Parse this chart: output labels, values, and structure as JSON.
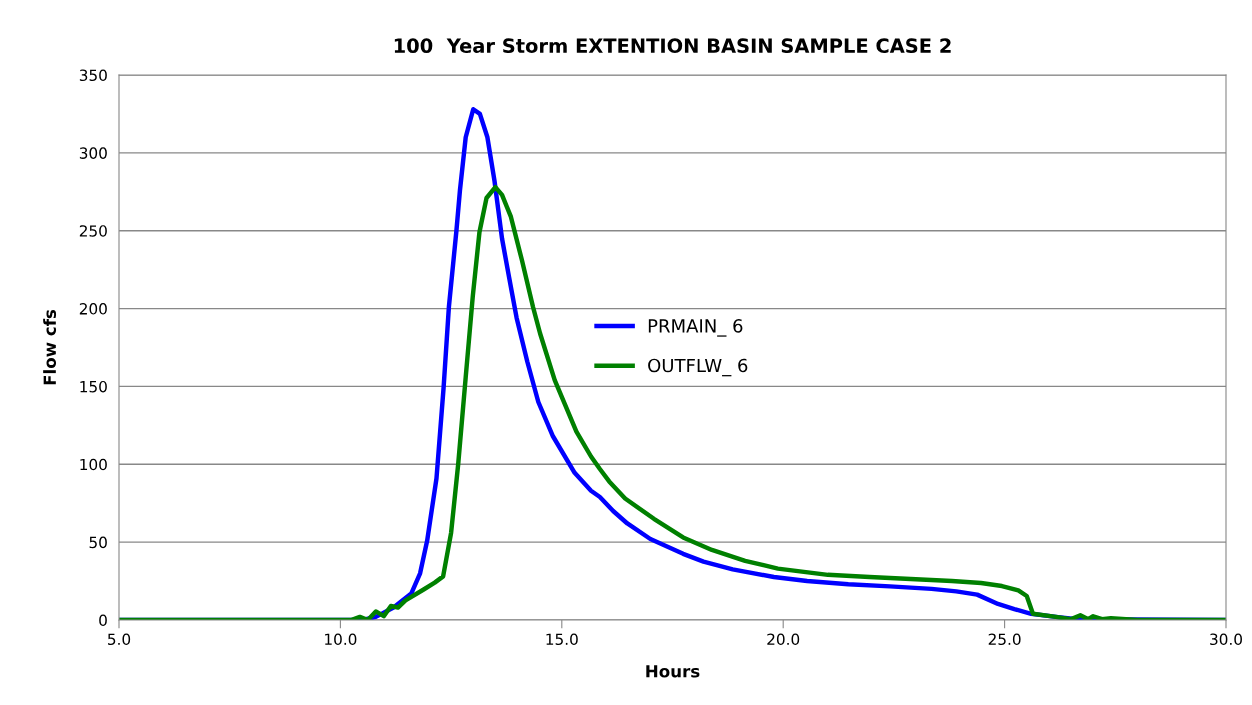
{
  "chart_data": {
    "type": "line",
    "title": "100  Year Storm EXTENTION BASIN SAMPLE CASE 2",
    "xlabel": "Hours",
    "ylabel": "Flow cfs",
    "xlim": [
      5,
      30
    ],
    "xticks": [
      {
        "value": 5,
        "label": "5.0"
      },
      {
        "value": 10,
        "label": "10.0"
      },
      {
        "value": 15,
        "label": "15.0"
      },
      {
        "value": 20,
        "label": "20.0"
      },
      {
        "value": 25,
        "label": "25.0"
      },
      {
        "value": 30,
        "label": "30.0"
      }
    ],
    "ylim": [
      0,
      350
    ],
    "yticks": [
      0,
      50,
      100,
      150,
      200,
      250,
      300,
      350
    ],
    "grid": "y",
    "legend": "center",
    "line_style": "solid",
    "marker": "none",
    "series": [
      {
        "name": "PRMAIN_ 6",
        "color": "#0000ff",
        "x": [
          5,
          10.5,
          10.8,
          11.2,
          11.6,
          11.8,
          11.96,
          12.17,
          12.33,
          12.45,
          12.62,
          12.7,
          12.83,
          13.0,
          13.15,
          13.32,
          13.48,
          13.65,
          13.81,
          13.98,
          14.22,
          14.47,
          14.8,
          15.29,
          15.66,
          15.86,
          16.16,
          16.48,
          17.0,
          17.74,
          18.2,
          18.86,
          19.79,
          20.54,
          21.47,
          22.41,
          23.35,
          23.91,
          24.38,
          24.85,
          25.22,
          25.6,
          26.16,
          26.63,
          30
        ],
        "values": [
          0,
          0,
          2,
          8,
          17,
          30,
          51,
          91,
          149,
          201,
          250,
          276,
          310,
          328,
          325,
          310,
          282,
          245,
          220,
          194,
          166,
          140,
          118,
          94.5,
          83,
          79,
          70,
          62,
          52,
          42.5,
          37.5,
          32.5,
          27.6,
          25,
          23,
          21.6,
          20,
          18.4,
          16.3,
          10.3,
          7,
          4,
          2,
          0.5,
          0
        ]
      },
      {
        "name": "OUTFLW_ 6",
        "color": "#008000",
        "x": [
          5,
          10.24,
          10.44,
          10.62,
          10.8,
          10.98,
          11.14,
          11.3,
          11.47,
          11.88,
          12.13,
          12.32,
          12.5,
          12.66,
          12.83,
          12.99,
          13.14,
          13.3,
          13.5,
          13.65,
          13.85,
          14.1,
          14.35,
          14.51,
          14.84,
          15.33,
          15.66,
          15.86,
          16.07,
          16.43,
          17.08,
          17.74,
          18.39,
          19.14,
          19.88,
          21.01,
          21.95,
          22.88,
          23.81,
          24.47,
          24.94,
          25.31,
          25.5,
          25.64,
          26.16,
          26.49,
          26.71,
          26.89,
          27.0,
          27.2,
          27.4,
          28,
          30
        ],
        "values": [
          0,
          0,
          2,
          0,
          5.5,
          2.5,
          9,
          8,
          12.6,
          19.6,
          24,
          28,
          56,
          100,
          156,
          208,
          249,
          271,
          278,
          273,
          259,
          231,
          201,
          184,
          154,
          121,
          105,
          97,
          89,
          78,
          65,
          53,
          45,
          38,
          33,
          29,
          27.6,
          26.3,
          25,
          23.8,
          21.8,
          19,
          15.4,
          4,
          2,
          0.5,
          3,
          0.5,
          2.4,
          0.5,
          1.2,
          0,
          0
        ]
      }
    ]
  }
}
